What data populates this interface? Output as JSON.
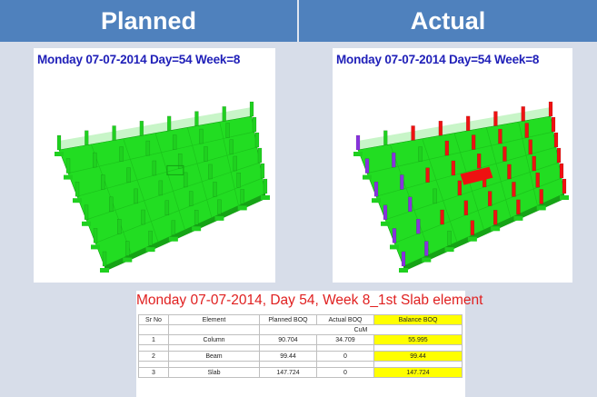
{
  "headers": {
    "planned": "Planned",
    "actual": "Actual"
  },
  "planned_panel": {
    "stamp": "Monday 07-07-2014 Day=54 Week=8"
  },
  "actual_panel": {
    "stamp": "Monday 07-07-2014 Day=54 Week=8"
  },
  "colors": {
    "header_bg": "#4f81bd",
    "slab_green": "#22dd22",
    "column_red": "#ee1111",
    "column_purple": "#8833dd",
    "highlight_yellow": "#ffff00"
  },
  "table": {
    "title": "Monday 07-07-2014, Day 54, Week 8_1st Slab element",
    "columns": [
      "Sr No",
      "Element",
      "Planned BOQ",
      "Actual BOQ",
      "Balance BOQ"
    ],
    "unit": "CuM",
    "rows": [
      {
        "sr": "1",
        "element": "Column",
        "planned": "90.704",
        "actual": "34.709",
        "balance": "55.995"
      },
      {
        "sr": "2",
        "element": "Beam",
        "planned": "99.44",
        "actual": "0",
        "balance": "99.44"
      },
      {
        "sr": "3",
        "element": "Slab",
        "planned": "147.724",
        "actual": "0",
        "balance": "147.724"
      }
    ]
  }
}
